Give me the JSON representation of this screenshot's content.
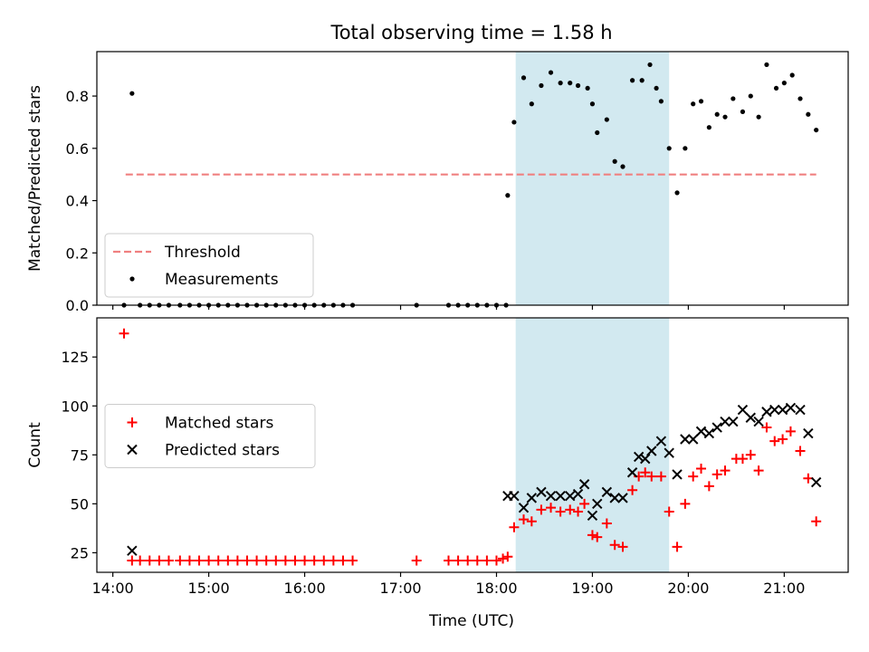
{
  "figure": {
    "title": "Total observing time = 1.58 h",
    "xlabel": "Time (UTC)"
  },
  "chart_data": [
    {
      "type": "scatter",
      "panel": "top",
      "title": "Total observing time = 1.58 h",
      "xlabel": "",
      "ylabel": "Matched/Predicted stars",
      "xlim": [
        "13:50",
        "21:40"
      ],
      "ylim": [
        0,
        0.97
      ],
      "yticks": [
        0.0,
        0.2,
        0.4,
        0.6,
        0.8
      ],
      "ytick_labels": [
        "0.0",
        "0.2",
        "0.4",
        "0.6",
        "0.8"
      ],
      "grid": false,
      "legend": "lower-left",
      "shaded_span": {
        "start": "18:12",
        "end": "19:48",
        "color": "#d2e9f0"
      },
      "threshold": {
        "name": "Threshold",
        "value": 0.5,
        "x_start": "14:08",
        "x_end": "21:20",
        "color": "#f08080",
        "style": "dashed"
      },
      "series": [
        {
          "name": "Measurements",
          "marker": "dot",
          "color": "#000000",
          "points": [
            [
              "14:07",
              0
            ],
            [
              "14:12",
              0.81
            ],
            [
              "14:17",
              0
            ],
            [
              "14:23",
              0
            ],
            [
              "14:29",
              0
            ],
            [
              "14:35",
              0
            ],
            [
              "14:42",
              0
            ],
            [
              "14:48",
              0
            ],
            [
              "14:54",
              0
            ],
            [
              "15:00",
              0
            ],
            [
              "15:06",
              0
            ],
            [
              "15:12",
              0
            ],
            [
              "15:18",
              0
            ],
            [
              "15:24",
              0
            ],
            [
              "15:30",
              0
            ],
            [
              "15:36",
              0
            ],
            [
              "15:42",
              0
            ],
            [
              "15:48",
              0
            ],
            [
              "15:54",
              0
            ],
            [
              "16:00",
              0
            ],
            [
              "16:06",
              0
            ],
            [
              "16:12",
              0
            ],
            [
              "16:18",
              0
            ],
            [
              "16:24",
              0
            ],
            [
              "16:30",
              0
            ],
            [
              "17:10",
              0
            ],
            [
              "17:30",
              0
            ],
            [
              "17:36",
              0
            ],
            [
              "17:42",
              0
            ],
            [
              "17:48",
              0
            ],
            [
              "17:54",
              0
            ],
            [
              "18:00",
              0
            ],
            [
              "18:06",
              0
            ],
            [
              "18:07",
              0.42
            ],
            [
              "18:11",
              0.7
            ],
            [
              "18:17",
              0.87
            ],
            [
              "18:22",
              0.77
            ],
            [
              "18:28",
              0.84
            ],
            [
              "18:34",
              0.89
            ],
            [
              "18:40",
              0.85
            ],
            [
              "18:46",
              0.85
            ],
            [
              "18:51",
              0.84
            ],
            [
              "18:57",
              0.83
            ],
            [
              "19:00",
              0.77
            ],
            [
              "19:03",
              0.66
            ],
            [
              "19:09",
              0.71
            ],
            [
              "19:14",
              0.55
            ],
            [
              "19:19",
              0.53
            ],
            [
              "19:25",
              0.86
            ],
            [
              "19:31",
              0.86
            ],
            [
              "19:36",
              0.92
            ],
            [
              "19:40",
              0.83
            ],
            [
              "19:43",
              0.78
            ],
            [
              "19:48",
              0.6
            ],
            [
              "19:53",
              0.43
            ],
            [
              "19:58",
              0.6
            ],
            [
              "20:03",
              0.77
            ],
            [
              "20:08",
              0.78
            ],
            [
              "20:13",
              0.68
            ],
            [
              "20:18",
              0.73
            ],
            [
              "20:23",
              0.72
            ],
            [
              "20:28",
              0.79
            ],
            [
              "20:34",
              0.74
            ],
            [
              "20:39",
              0.8
            ],
            [
              "20:44",
              0.72
            ],
            [
              "20:49",
              0.92
            ],
            [
              "20:55",
              0.83
            ],
            [
              "21:00",
              0.85
            ],
            [
              "21:05",
              0.88
            ],
            [
              "21:10",
              0.79
            ],
            [
              "21:15",
              0.73
            ],
            [
              "21:20",
              0.67
            ]
          ]
        }
      ]
    },
    {
      "type": "scatter",
      "panel": "bottom",
      "title": "",
      "xlabel": "Time (UTC)",
      "ylabel": "Count",
      "xlim": [
        "13:50",
        "21:40"
      ],
      "ylim": [
        15,
        145
      ],
      "yticks": [
        25,
        50,
        75,
        100,
        125
      ],
      "ytick_labels": [
        "25",
        "50",
        "75",
        "100",
        "125"
      ],
      "xticks": [
        "14:00",
        "15:00",
        "16:00",
        "17:00",
        "18:00",
        "19:00",
        "20:00",
        "21:00"
      ],
      "xtick_labels": [
        "14:00",
        "15:00",
        "16:00",
        "17:00",
        "18:00",
        "19:00",
        "20:00",
        "21:00"
      ],
      "grid": false,
      "legend": "center-left",
      "shaded_span": {
        "start": "18:12",
        "end": "19:48",
        "color": "#d2e9f0"
      },
      "series": [
        {
          "name": "Matched stars",
          "marker": "plus",
          "color": "#ff0000",
          "points": [
            [
              "14:07",
              137
            ],
            [
              "14:12",
              21
            ],
            [
              "14:17",
              21
            ],
            [
              "14:23",
              21
            ],
            [
              "14:29",
              21
            ],
            [
              "14:35",
              21
            ],
            [
              "14:42",
              21
            ],
            [
              "14:48",
              21
            ],
            [
              "14:54",
              21
            ],
            [
              "15:00",
              21
            ],
            [
              "15:06",
              21
            ],
            [
              "15:12",
              21
            ],
            [
              "15:18",
              21
            ],
            [
              "15:24",
              21
            ],
            [
              "15:30",
              21
            ],
            [
              "15:36",
              21
            ],
            [
              "15:42",
              21
            ],
            [
              "15:48",
              21
            ],
            [
              "15:54",
              21
            ],
            [
              "16:00",
              21
            ],
            [
              "16:06",
              21
            ],
            [
              "16:12",
              21
            ],
            [
              "16:18",
              21
            ],
            [
              "16:24",
              21
            ],
            [
              "16:30",
              21
            ],
            [
              "17:10",
              21
            ],
            [
              "17:30",
              21
            ],
            [
              "17:36",
              21
            ],
            [
              "17:42",
              21
            ],
            [
              "17:48",
              21
            ],
            [
              "17:54",
              21
            ],
            [
              "18:00",
              21
            ],
            [
              "18:04",
              22
            ],
            [
              "18:07",
              23
            ],
            [
              "18:11",
              38
            ],
            [
              "18:17",
              42
            ],
            [
              "18:22",
              41
            ],
            [
              "18:28",
              47
            ],
            [
              "18:34",
              48
            ],
            [
              "18:40",
              46
            ],
            [
              "18:46",
              47
            ],
            [
              "18:51",
              46
            ],
            [
              "18:55",
              50
            ],
            [
              "19:00",
              34
            ],
            [
              "19:03",
              33
            ],
            [
              "19:09",
              40
            ],
            [
              "19:14",
              29
            ],
            [
              "19:19",
              28
            ],
            [
              "19:25",
              57
            ],
            [
              "19:29",
              64
            ],
            [
              "19:33",
              66
            ],
            [
              "19:37",
              64
            ],
            [
              "19:43",
              64
            ],
            [
              "19:48",
              46
            ],
            [
              "19:53",
              28
            ],
            [
              "19:58",
              50
            ],
            [
              "20:03",
              64
            ],
            [
              "20:08",
              68
            ],
            [
              "20:13",
              59
            ],
            [
              "20:18",
              65
            ],
            [
              "20:23",
              67
            ],
            [
              "20:30",
              73
            ],
            [
              "20:34",
              73
            ],
            [
              "20:39",
              75
            ],
            [
              "20:44",
              67
            ],
            [
              "20:49",
              89
            ],
            [
              "20:54",
              82
            ],
            [
              "20:59",
              83
            ],
            [
              "21:04",
              87
            ],
            [
              "21:10",
              77
            ],
            [
              "21:15",
              63
            ],
            [
              "21:20",
              41
            ]
          ]
        },
        {
          "name": "Predicted stars",
          "marker": "x",
          "color": "#000000",
          "points": [
            [
              "14:12",
              26
            ],
            [
              "18:07",
              54
            ],
            [
              "18:11",
              54
            ],
            [
              "18:17",
              48
            ],
            [
              "18:22",
              53
            ],
            [
              "18:28",
              56
            ],
            [
              "18:34",
              54
            ],
            [
              "18:40",
              54
            ],
            [
              "18:46",
              54
            ],
            [
              "18:51",
              55
            ],
            [
              "18:55",
              60
            ],
            [
              "19:00",
              44
            ],
            [
              "19:03",
              50
            ],
            [
              "19:09",
              56
            ],
            [
              "19:14",
              53
            ],
            [
              "19:19",
              53
            ],
            [
              "19:25",
              66
            ],
            [
              "19:29",
              74
            ],
            [
              "19:33",
              73
            ],
            [
              "19:37",
              77
            ],
            [
              "19:43",
              82
            ],
            [
              "19:48",
              76
            ],
            [
              "19:53",
              65
            ],
            [
              "19:58",
              83
            ],
            [
              "20:03",
              83
            ],
            [
              "20:08",
              87
            ],
            [
              "20:13",
              86
            ],
            [
              "20:18",
              89
            ],
            [
              "20:23",
              92
            ],
            [
              "20:28",
              92
            ],
            [
              "20:34",
              98
            ],
            [
              "20:39",
              94
            ],
            [
              "20:44",
              92
            ],
            [
              "20:49",
              97
            ],
            [
              "20:54",
              98
            ],
            [
              "20:59",
              98
            ],
            [
              "21:04",
              99
            ],
            [
              "21:10",
              98
            ],
            [
              "21:15",
              86
            ],
            [
              "21:20",
              61
            ]
          ]
        }
      ]
    }
  ]
}
